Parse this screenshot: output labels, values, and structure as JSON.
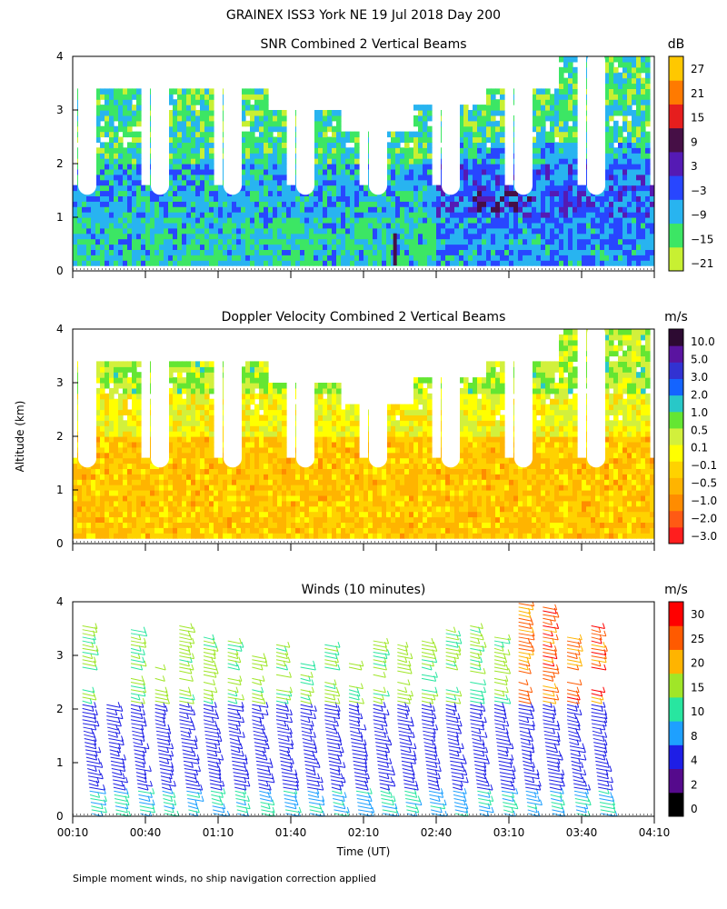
{
  "figure_title": "GRAINEX ISS3 York NE  19 Jul 2018 Day 200",
  "y_axis_label": "Altitude (km)",
  "footnote": "Simple moment winds, no ship navigation correction applied",
  "colors": {
    "snr_scale": [
      "#c8f032",
      "#3ce664",
      "#28b4f0",
      "#2846ff",
      "#551ab4",
      "#460f46",
      "#e61e1e",
      "#ff7a00",
      "#ffc800"
    ],
    "vel_scale": [
      "#ff1e1e",
      "#ff5a14",
      "#ff8c00",
      "#ffb400",
      "#ffd200",
      "#ffff00",
      "#d2f03c",
      "#64e632",
      "#28c8c8",
      "#1464ff",
      "#3232d2",
      "#5a14a0",
      "#2d0a32"
    ],
    "wind_scale": [
      "#000000",
      "#550a8c",
      "#1e1ee6",
      "#1ea0ff",
      "#28e6a0",
      "#a0e628",
      "#ffb400",
      "#ff5a00",
      "#ff0000"
    ]
  },
  "chart_data": [
    {
      "type": "heatmap",
      "title": "SNR Combined 2 Vertical Beams",
      "xlabel": "",
      "ylabel": "Altitude (km)",
      "ylim": [
        0,
        4
      ],
      "yticks": [
        "0",
        "1",
        "2",
        "3",
        "4"
      ],
      "colorbar_unit": "dB",
      "colorbar_labels": [
        "27",
        "21",
        "15",
        "9",
        "3",
        "−3",
        "−9",
        "−15",
        "−21"
      ],
      "profile_times": [
        "00:15",
        "00:45",
        "01:15",
        "01:45",
        "02:15",
        "02:45",
        "03:15",
        "03:45"
      ],
      "profile_tops_km": [
        3.3,
        3.3,
        3.2,
        2.9,
        2.5,
        3.0,
        3.3,
        3.9
      ],
      "gap_bottom_km": 1.4
    },
    {
      "type": "heatmap",
      "title": "Doppler Velocity Combined 2 Vertical Beams",
      "xlabel": "",
      "ylabel": "Altitude (km)",
      "ylim": [
        0,
        4
      ],
      "yticks": [
        "0",
        "1",
        "2",
        "3",
        "4"
      ],
      "colorbar_unit": "m/s",
      "colorbar_labels": [
        "10.0",
        "5.0",
        "3.0",
        "2.0",
        "1.0",
        "0.5",
        "0.1",
        "−0.1",
        "−0.5",
        "−1.0",
        "−2.0",
        "−3.0"
      ]
    },
    {
      "type": "scatter",
      "title": "Winds (10 minutes)",
      "xlabel": "Time (UT)",
      "ylabel": "Altitude (km)",
      "ylim": [
        0,
        4
      ],
      "yticks": [
        "0",
        "1",
        "2",
        "3",
        "4"
      ],
      "xticks": [
        "00:10",
        "00:40",
        "01:10",
        "01:40",
        "02:10",
        "02:40",
        "03:10",
        "03:40",
        "04:10"
      ],
      "colorbar_unit": "m/s",
      "colorbar_labels": [
        "30",
        "25",
        "20",
        "15",
        "10",
        "8",
        "4",
        "2",
        "0"
      ],
      "profile_columns": [
        {
          "time": "00:10",
          "top_km": 3.6
        },
        {
          "time": "00:20",
          "top_km": 2.1
        },
        {
          "time": "00:30",
          "top_km": 3.5
        },
        {
          "time": "00:40",
          "top_km": 2.8
        },
        {
          "time": "00:50",
          "top_km": 3.6
        },
        {
          "time": "01:00",
          "top_km": 3.4
        },
        {
          "time": "01:10",
          "top_km": 3.3
        },
        {
          "time": "01:20",
          "top_km": 3.0
        },
        {
          "time": "01:30",
          "top_km": 3.2
        },
        {
          "time": "01:40",
          "top_km": 2.9
        },
        {
          "time": "01:50",
          "top_km": 3.2
        },
        {
          "time": "02:00",
          "top_km": 2.9
        },
        {
          "time": "02:10",
          "top_km": 3.3
        },
        {
          "time": "02:20",
          "top_km": 3.2
        },
        {
          "time": "02:30",
          "top_km": 3.3
        },
        {
          "time": "02:40",
          "top_km": 3.5
        },
        {
          "time": "02:50",
          "top_km": 3.6
        },
        {
          "time": "03:00",
          "top_km": 3.4
        },
        {
          "time": "03:10",
          "top_km": 4.0
        },
        {
          "time": "03:20",
          "top_km": 3.9
        },
        {
          "time": "03:30",
          "top_km": 3.4
        },
        {
          "time": "03:40",
          "top_km": 3.6
        }
      ]
    }
  ]
}
